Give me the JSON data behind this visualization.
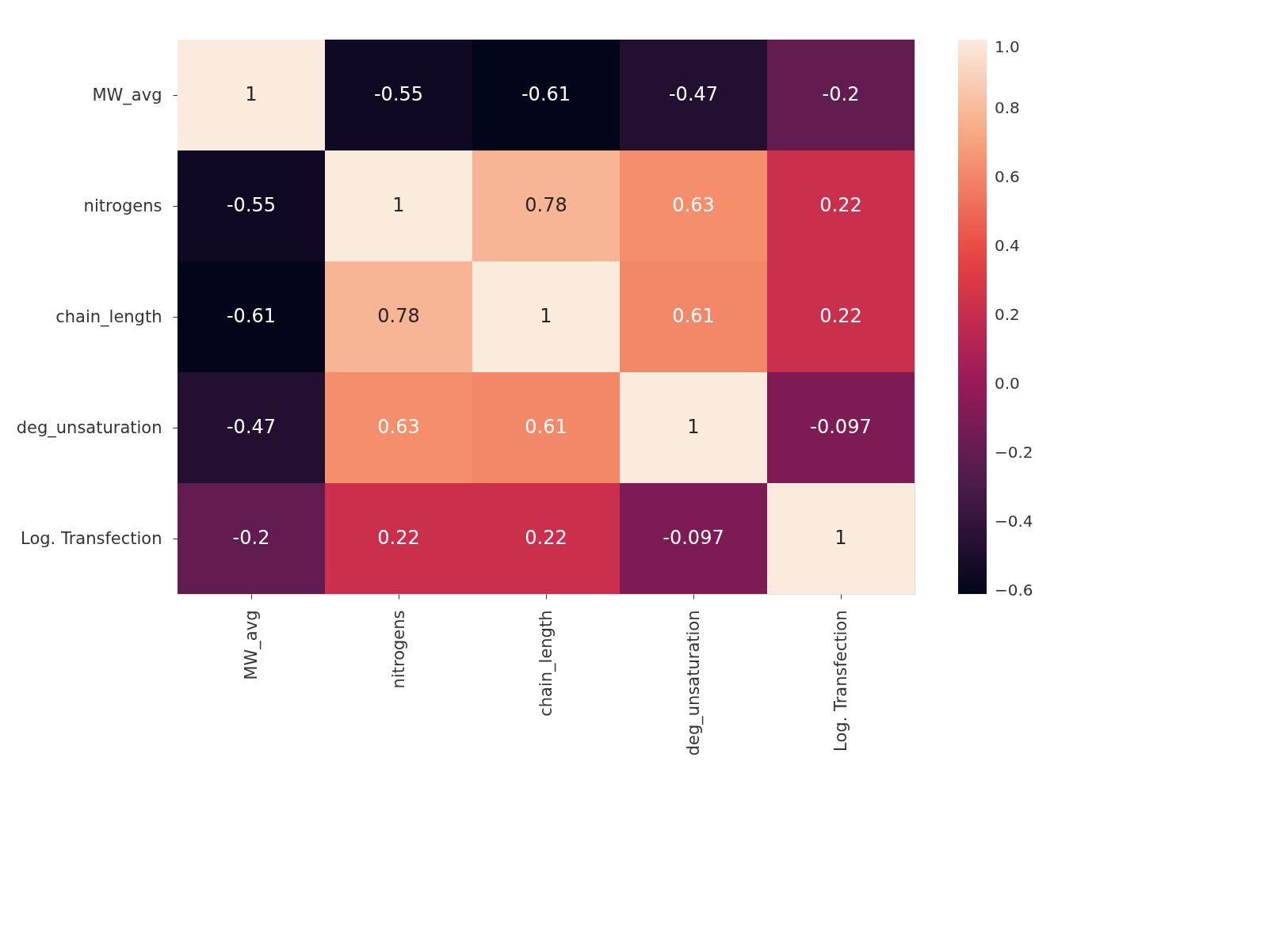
{
  "chart_data": {
    "type": "heatmap",
    "categories": [
      "MW_avg",
      "nitrogens",
      "chain_length",
      "deg_unsaturation",
      "Log. Transfection"
    ],
    "y_categories": [
      "MW_avg",
      "nitrogens",
      "chain_length",
      "deg_unsaturation",
      "Log. Transfection"
    ],
    "cells": [
      [
        1,
        -0.55,
        -0.61,
        -0.47,
        -0.2
      ],
      [
        -0.55,
        1,
        0.78,
        0.63,
        0.22
      ],
      [
        -0.61,
        0.78,
        1,
        0.61,
        0.22
      ],
      [
        -0.47,
        0.63,
        0.61,
        1,
        -0.097
      ],
      [
        -0.2,
        0.22,
        0.22,
        -0.097,
        1
      ]
    ],
    "data_labels": true,
    "clim": [
      -0.61,
      1
    ],
    "cticks": [
      {
        "value": 1,
        "label": "1.0"
      },
      0.8,
      0.6,
      0.4,
      0.2,
      {
        "value": 0,
        "label": "0.0"
      },
      -0.2,
      -0.4,
      -0.6
    ]
  }
}
